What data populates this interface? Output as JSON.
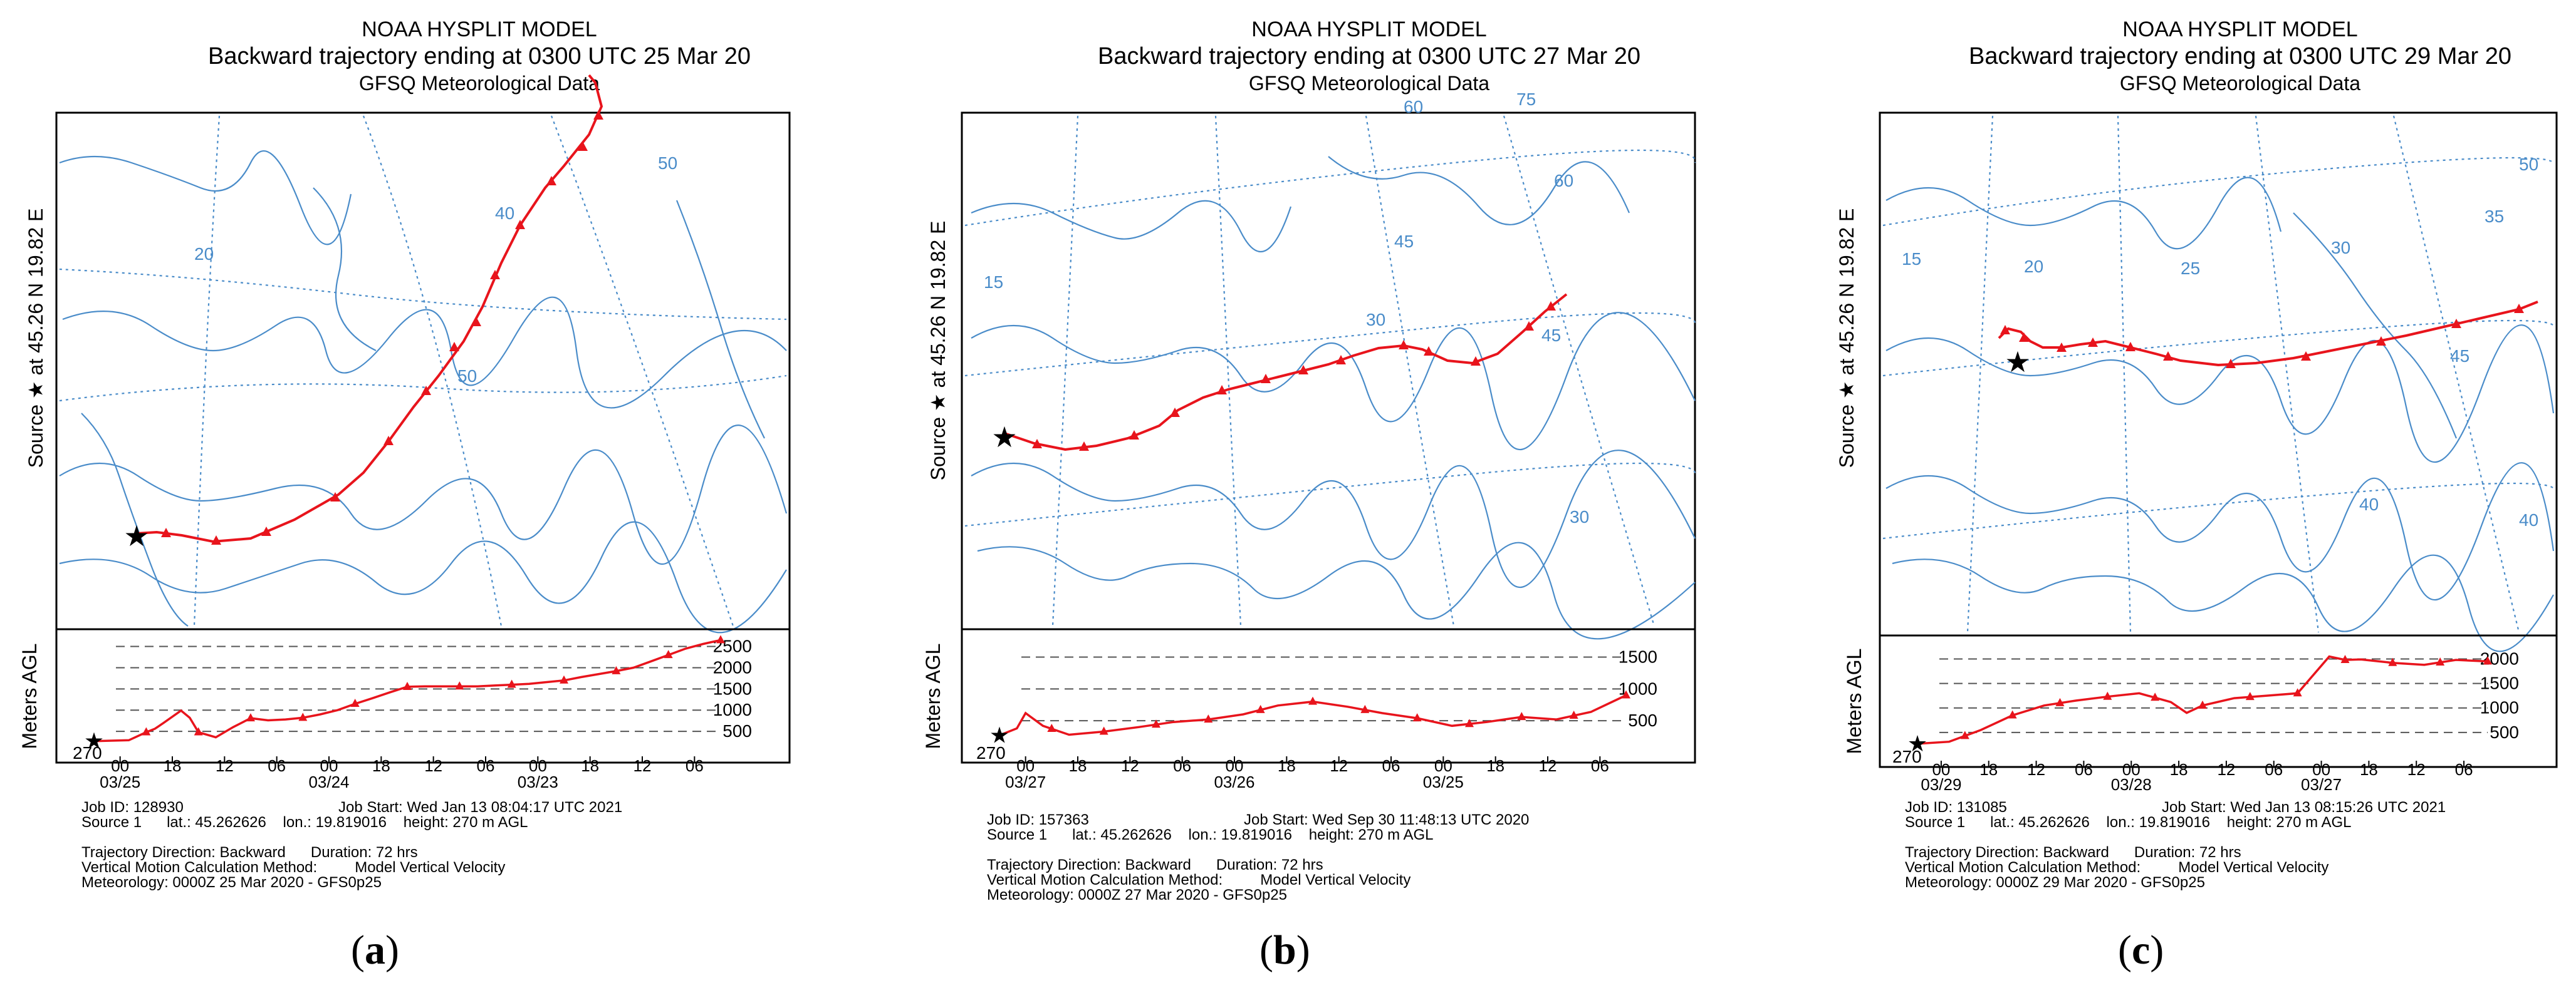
{
  "colors": {
    "trajectory": "#e8141c",
    "map_lines": "#4a8cc9",
    "frame": "#000000",
    "dash": "#555555"
  },
  "panels": [
    {
      "label": "(a)",
      "label_letter": "a",
      "title": [
        "NOAA HYSPLIT MODEL",
        "Backward trajectory ending at 0300 UTC 25 Mar 20",
        "GFSQ Meteorological Data"
      ],
      "side_label": "Source ★  at  45.26 N   19.82 E",
      "map_grid_labels": [
        "20",
        "40",
        "50",
        "50"
      ],
      "ylabel": "Meters AGL",
      "source_height_label": "270",
      "job_id": "Job ID: 128930",
      "job_start": "Job Start: Wed Jan 13 08:04:17 UTC 2021",
      "source_line": "Source 1      lat.: 45.262626    lon.: 19.819016    height: 270 m AGL",
      "direction": "Trajectory Direction: Backward      Duration: 72 hrs",
      "vertical_method": "Vertical Motion Calculation Method:         Model Vertical Velocity",
      "meteorology": "Meteorology: 0000Z 25 Mar 2020 - GFS0p25"
    },
    {
      "label": "(b)",
      "label_letter": "b",
      "title": [
        "NOAA HYSPLIT MODEL",
        "Backward trajectory ending at 0300 UTC 27 Mar 20",
        "GFSQ Meteorological Data"
      ],
      "side_label": "Source ★  at  45.26 N   19.82 E",
      "map_grid_labels": [
        "60",
        "75",
        "60",
        "45",
        "45",
        "30",
        "15",
        "30"
      ],
      "ylabel": "Meters AGL",
      "source_height_label": "270",
      "job_id": "Job ID: 157363",
      "job_start": "Job Start: Wed Sep 30 11:48:13 UTC 2020",
      "source_line": "Source 1      lat.: 45.262626    lon.: 19.819016    height: 270 m AGL",
      "direction": "Trajectory Direction: Backward      Duration: 72 hrs",
      "vertical_method": "Vertical Motion Calculation Method:         Model Vertical Velocity",
      "meteorology": "Meteorology: 0000Z 27 Mar 2020 - GFS0p25"
    },
    {
      "label": "(c)",
      "label_letter": "c",
      "title": [
        "NOAA HYSPLIT MODEL",
        "Backward trajectory ending at 0300 UTC 29 Mar 20",
        "GFSQ Meteorological Data"
      ],
      "side_label": "Source ★  at  45.26 N   19.82 E",
      "map_grid_labels": [
        "50",
        "40",
        "15",
        "20",
        "25",
        "30",
        "35",
        "45",
        "40"
      ],
      "ylabel": "Meters AGL",
      "source_height_label": "270",
      "job_id": "Job ID: 131085",
      "job_start": "Job Start: Wed Jan 13 08:15:26 UTC 2021",
      "source_line": "Source 1      lat.: 45.262626    lon.: 19.819016    height: 270 m AGL",
      "direction": "Trajectory Direction: Backward      Duration: 72 hrs",
      "vertical_method": "Vertical Motion Calculation Method:         Model Vertical Velocity",
      "meteorology": "Meteorology: 0000Z 29 Mar 2020 - GFS0p25"
    }
  ],
  "chart_data": [
    {
      "type": "line",
      "title": "Backward trajectory ending at 0300 UTC 25 Mar 20",
      "xlabel": "",
      "ylabel": "Meters AGL",
      "x_tick_labels": [
        "00",
        "18",
        "12",
        "06",
        "00",
        "18",
        "12",
        "06",
        "00",
        "18",
        "12",
        "06"
      ],
      "x_date_labels": [
        "03/25",
        "03/24",
        "03/23"
      ],
      "y_ticks": [
        500,
        1000,
        1500,
        2000,
        2500
      ],
      "ylim": [
        0,
        2700
      ],
      "grid": "dashed horizontal",
      "x": [
        0,
        2,
        4,
        6,
        7,
        8,
        10,
        11,
        12,
        14,
        16,
        18,
        20,
        22,
        24,
        26,
        28,
        30,
        32,
        34,
        36,
        38,
        40,
        42,
        44,
        46,
        48,
        50,
        52,
        54,
        56,
        58,
        60,
        62,
        64,
        66,
        68,
        70,
        72
      ],
      "values": [
        270,
        280,
        290,
        480,
        560,
        700,
        990,
        820,
        480,
        360,
        600,
        810,
        760,
        780,
        820,
        900,
        1000,
        1150,
        1280,
        1420,
        1550,
        1560,
        1560,
        1560,
        1560,
        1580,
        1600,
        1620,
        1660,
        1700,
        1780,
        1850,
        1920,
        2000,
        2150,
        2300,
        2450,
        2560,
        2650
      ],
      "marker_every_hours": 6
    },
    {
      "type": "line",
      "title": "Backward trajectory ending at 0300 UTC 27 Mar 20",
      "xlabel": "",
      "ylabel": "Meters AGL",
      "x_tick_labels": [
        "00",
        "18",
        "12",
        "06",
        "00",
        "18",
        "12",
        "06",
        "00",
        "18",
        "12",
        "06"
      ],
      "x_date_labels": [
        "03/27",
        "03/26",
        "03/25"
      ],
      "y_ticks": [
        500,
        1000,
        1500
      ],
      "ylim": [
        0,
        1800
      ],
      "grid": "dashed horizontal",
      "x": [
        0,
        2,
        3,
        5,
        8,
        12,
        16,
        20,
        24,
        28,
        32,
        36,
        40,
        44,
        48,
        52,
        56,
        60,
        64,
        68,
        72
      ],
      "values": [
        270,
        380,
        620,
        420,
        280,
        330,
        400,
        480,
        520,
        600,
        740,
        800,
        720,
        620,
        540,
        420,
        480,
        560,
        520,
        640,
        900
      ],
      "marker_every_hours": 6
    },
    {
      "type": "line",
      "title": "Backward trajectory ending at 0300 UTC 29 Mar 20",
      "xlabel": "",
      "ylabel": "Meters AGL",
      "x_tick_labels": [
        "00",
        "18",
        "12",
        "06",
        "00",
        "18",
        "12",
        "06",
        "00",
        "18",
        "12",
        "06"
      ],
      "x_date_labels": [
        "03/29",
        "03/28",
        "03/27"
      ],
      "y_ticks": [
        500,
        1000,
        1500,
        2000
      ],
      "ylim": [
        0,
        2300
      ],
      "grid": "dashed horizontal",
      "x": [
        0,
        4,
        8,
        12,
        16,
        20,
        24,
        28,
        32,
        34,
        36,
        40,
        44,
        48,
        52,
        54,
        56,
        60,
        64,
        68,
        72
      ],
      "values": [
        270,
        310,
        550,
        850,
        1050,
        1150,
        1230,
        1300,
        1120,
        900,
        1050,
        1200,
        1250,
        1300,
        2050,
        1980,
        1990,
        1920,
        1880,
        1980,
        1950
      ],
      "marker_every_hours": 6
    }
  ]
}
